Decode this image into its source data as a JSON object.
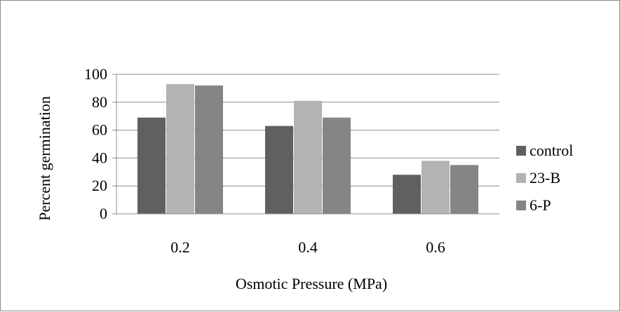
{
  "chart_data": {
    "type": "bar",
    "title": "",
    "xlabel": "Osmotic Pressure (MPa)",
    "ylabel": "Percent germination",
    "categories": [
      "0.2",
      "0.4",
      "0.6"
    ],
    "ylim": [
      0,
      100
    ],
    "yticks": [
      0,
      20,
      40,
      60,
      80,
      100
    ],
    "grid": true,
    "legend_position": "right",
    "series": [
      {
        "name": "control",
        "values": [
          69,
          63,
          28
        ],
        "color": "#606060"
      },
      {
        "name": "23-B",
        "values": [
          93,
          81,
          38
        ],
        "color": "#b3b3b3"
      },
      {
        "name": "6-P",
        "values": [
          92,
          69,
          35
        ],
        "color": "#858585"
      }
    ]
  }
}
